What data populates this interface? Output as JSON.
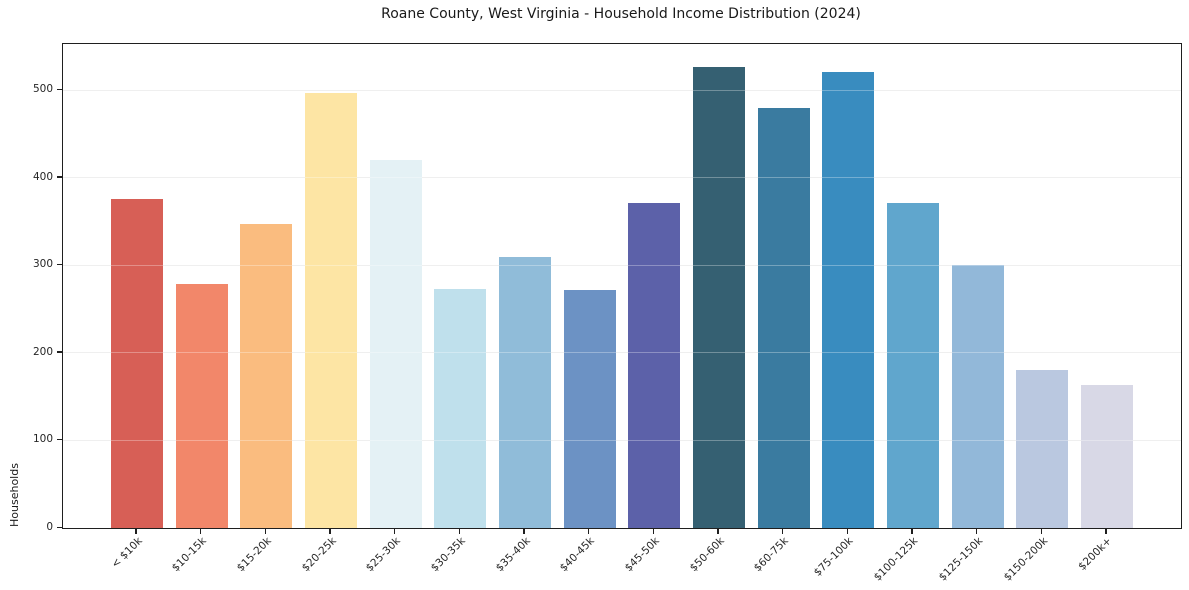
{
  "chart_data": {
    "type": "bar",
    "title": "Roane County, West Virginia - Household Income Distribution (2024)",
    "xlabel": "",
    "ylabel": "Households",
    "ylim": [
      0,
      553
    ],
    "yticks": [
      0,
      100,
      200,
      300,
      400,
      500
    ],
    "grid": "horizontal",
    "legend": "none",
    "categories": [
      "< $10k",
      "$10-15k",
      "$15-20k",
      "$20-25k",
      "$25-30k",
      "$30-35k",
      "$35-40k",
      "$40-45k",
      "$45-50k",
      "$50-60k",
      "$60-75k",
      "$75-100k",
      "$100-125k",
      "$125-150k",
      "$150-200k",
      "$200k+"
    ],
    "values": [
      376,
      279,
      347,
      497,
      421,
      273,
      310,
      272,
      371,
      527,
      480,
      521,
      371,
      300,
      181,
      163
    ],
    "bar_colors": [
      "#d75f56",
      "#f2876a",
      "#fabc7f",
      "#fde5a4",
      "#e4f1f5",
      "#bfe0ec",
      "#90bcd9",
      "#6c92c4",
      "#5c61a9",
      "#356072",
      "#3a7ba0",
      "#398cbf",
      "#60a6cd",
      "#92b8d9",
      "#bac8e0",
      "#d8d8e6"
    ],
    "colors": {
      "background": "#ffffff",
      "spine": "#1f1f1f",
      "gridline": "#e9e9e9",
      "tick_text": "#262626"
    }
  }
}
